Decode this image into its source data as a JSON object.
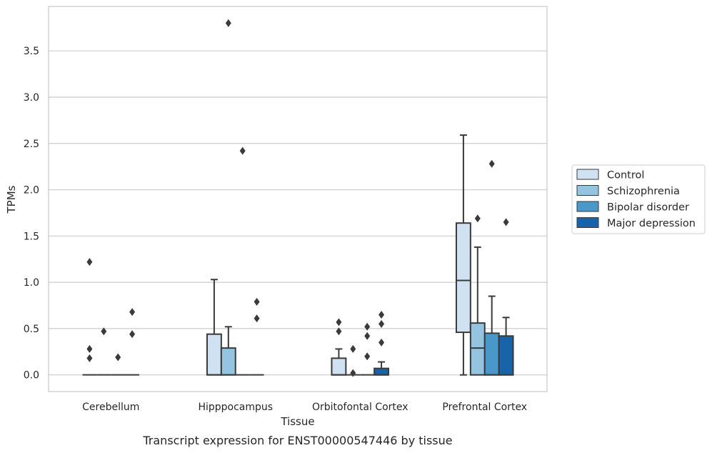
{
  "caption": "Transcript expression for ENST00000547446 by tissue",
  "colors": {
    "Control": "#d0e1f2",
    "Schizophrenia": "#94c4df",
    "Bipolar disorder": "#4a98c9",
    "Major depression": "#1764ab",
    "grid": "#cccccc",
    "frame": "#cccccc",
    "box_edge": "#3a3a3a"
  },
  "chart_data": {
    "type": "box",
    "xlabel": "Tissue",
    "ylabel": "TPMs",
    "ylim": [
      -0.18,
      3.98
    ],
    "yticks": [
      0.0,
      0.5,
      1.0,
      1.5,
      2.0,
      2.5,
      3.0,
      3.5
    ],
    "ytick_labels": [
      "0.0",
      "0.5",
      "1.0",
      "1.5",
      "2.0",
      "2.5",
      "3.0",
      "3.5"
    ],
    "grid": true,
    "legend_position": "right",
    "categories": [
      "Cerebellum",
      "Hipppocampus",
      "Orbitofontal Cortex",
      "Prefrontal Cortex"
    ],
    "series": [
      {
        "name": "Control",
        "boxes": [
          {
            "whislo": 0,
            "q1": 0,
            "med": 0,
            "q3": 0,
            "whishi": 0,
            "fliers": [
              0.18,
              0.28,
              1.22
            ]
          },
          {
            "whislo": 0,
            "q1": 0,
            "med": 0,
            "q3": 0.44,
            "whishi": 1.03,
            "fliers": []
          },
          {
            "whislo": 0,
            "q1": 0,
            "med": 0,
            "q3": 0.18,
            "whishi": 0.28,
            "fliers": [
              0.47,
              0.57
            ]
          },
          {
            "whislo": 0,
            "q1": 0.46,
            "med": 1.02,
            "q3": 1.64,
            "whishi": 2.59,
            "fliers": []
          }
        ]
      },
      {
        "name": "Schizophrenia",
        "boxes": [
          {
            "whislo": 0,
            "q1": 0,
            "med": 0,
            "q3": 0,
            "whishi": 0,
            "fliers": [
              0.47
            ]
          },
          {
            "whislo": 0,
            "q1": 0,
            "med": 0,
            "q3": 0.29,
            "whishi": 0.52,
            "fliers": [
              3.8
            ]
          },
          {
            "whislo": 0,
            "q1": 0,
            "med": 0,
            "q3": 0,
            "whishi": 0,
            "fliers": [
              0.02,
              0.28
            ]
          },
          {
            "whislo": 0,
            "q1": 0,
            "med": 0.29,
            "q3": 0.56,
            "whishi": 1.38,
            "fliers": [
              1.69
            ]
          }
        ]
      },
      {
        "name": "Bipolar disorder",
        "boxes": [
          {
            "whislo": 0,
            "q1": 0,
            "med": 0,
            "q3": 0,
            "whishi": 0,
            "fliers": [
              0.19
            ]
          },
          {
            "whislo": 0,
            "q1": 0,
            "med": 0,
            "q3": 0,
            "whishi": 0,
            "fliers": [
              2.42
            ]
          },
          {
            "whislo": 0,
            "q1": 0,
            "med": 0,
            "q3": 0,
            "whishi": 0,
            "fliers": [
              0.2,
              0.42,
              0.52
            ]
          },
          {
            "whislo": 0,
            "q1": 0,
            "med": 0,
            "q3": 0.45,
            "whishi": 0.85,
            "fliers": [
              2.28
            ]
          }
        ]
      },
      {
        "name": "Major depression",
        "boxes": [
          {
            "whislo": 0,
            "q1": 0,
            "med": 0,
            "q3": 0,
            "whishi": 0,
            "fliers": [
              0.44,
              0.68
            ]
          },
          {
            "whislo": 0,
            "q1": 0,
            "med": 0,
            "q3": 0,
            "whishi": 0,
            "fliers": [
              0.61,
              0.79
            ]
          },
          {
            "whislo": 0,
            "q1": 0,
            "med": 0,
            "q3": 0.07,
            "whishi": 0.14,
            "fliers": [
              0.35,
              0.55,
              0.65
            ]
          },
          {
            "whislo": 0,
            "q1": 0,
            "med": 0,
            "q3": 0.42,
            "whishi": 0.62,
            "fliers": [
              1.65
            ]
          }
        ]
      }
    ]
  }
}
